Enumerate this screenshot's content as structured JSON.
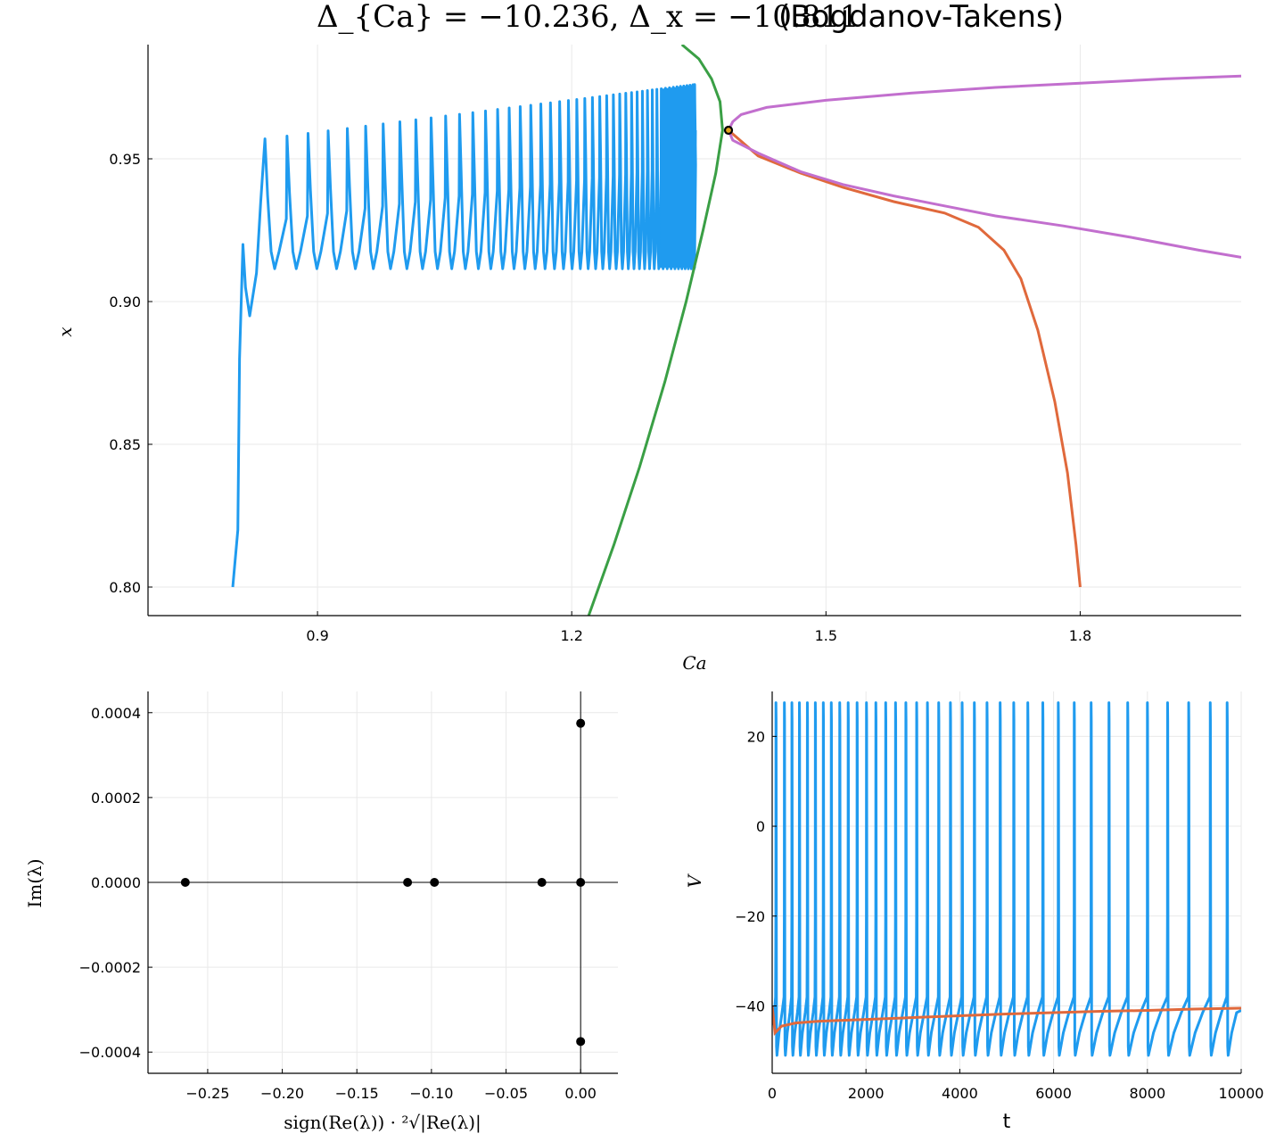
{
  "figure": {
    "title_math": "Δ_{Ca} = −10.236, Δ_x = −10.811",
    "title_plain": "(Bogdanov-Takens)"
  },
  "colors": {
    "trajectory": "#1f9bef",
    "green_branch": "#3a9f45",
    "orange_branch": "#e0693c",
    "purple_branch": "#c26fce",
    "point": "#000000",
    "bt_fill": "#e3a31e"
  },
  "chart_data": [
    {
      "type": "line",
      "panel": "phase-plane",
      "xlabel": "Ca",
      "ylabel": "x",
      "xlim": [
        0.7,
        1.99
      ],
      "ylim": [
        0.79,
        0.99
      ],
      "xticks": [
        0.9,
        1.2,
        1.5,
        1.8
      ],
      "xtick_labels": [
        "0.9",
        "1.2",
        "1.5",
        "1.8"
      ],
      "yticks": [
        0.8,
        0.85,
        0.9,
        0.95
      ],
      "ytick_labels": [
        "0.80",
        "0.85",
        "0.90",
        "0.95"
      ],
      "grid": true,
      "series": [
        {
          "key": "trajectory",
          "description_points": [
            [
              0.8,
              0.8
            ],
            [
              0.81,
              0.88
            ],
            [
              0.812,
              0.92
            ],
            [
              0.82,
              0.895
            ],
            [
              0.835,
              0.935
            ],
            [
              0.838,
              0.957
            ],
            [
              1.345,
              0.976
            ],
            [
              1.345,
              0.912
            ]
          ]
        },
        {
          "key": "green",
          "points": [
            [
              1.22,
              0.79
            ],
            [
              1.25,
              0.815
            ],
            [
              1.28,
              0.842
            ],
            [
              1.31,
              0.872
            ],
            [
              1.335,
              0.9
            ],
            [
              1.355,
              0.925
            ],
            [
              1.37,
              0.945
            ],
            [
              1.378,
              0.96
            ],
            [
              1.375,
              0.97
            ],
            [
              1.365,
              0.978
            ],
            [
              1.35,
              0.985
            ],
            [
              1.33,
              0.99
            ]
          ]
        },
        {
          "key": "orange",
          "points": [
            [
              1.385,
              0.96
            ],
            [
              1.42,
              0.951
            ],
            [
              1.47,
              0.945
            ],
            [
              1.52,
              0.94
            ],
            [
              1.58,
              0.935
            ],
            [
              1.64,
              0.931
            ],
            [
              1.68,
              0.926
            ],
            [
              1.71,
              0.918
            ],
            [
              1.73,
              0.908
            ],
            [
              1.75,
              0.89
            ],
            [
              1.77,
              0.865
            ],
            [
              1.785,
              0.84
            ],
            [
              1.795,
              0.815
            ],
            [
              1.8,
              0.8
            ]
          ]
        },
        {
          "key": "purple_upper",
          "points": [
            [
              1.385,
              0.96
            ],
            [
              1.39,
              0.963
            ],
            [
              1.4,
              0.9655
            ],
            [
              1.43,
              0.968
            ],
            [
              1.5,
              0.9705
            ],
            [
              1.6,
              0.973
            ],
            [
              1.7,
              0.975
            ],
            [
              1.8,
              0.9765
            ],
            [
              1.9,
              0.978
            ],
            [
              1.99,
              0.979
            ]
          ]
        },
        {
          "key": "purple_lower",
          "points": [
            [
              1.385,
              0.96
            ],
            [
              1.39,
              0.9565
            ],
            [
              1.42,
              0.952
            ],
            [
              1.47,
              0.9455
            ],
            [
              1.52,
              0.941
            ],
            [
              1.58,
              0.937
            ],
            [
              1.64,
              0.9335
            ],
            [
              1.7,
              0.93
            ],
            [
              1.78,
              0.9265
            ],
            [
              1.86,
              0.9225
            ],
            [
              1.94,
              0.918
            ],
            [
              1.99,
              0.9155
            ]
          ]
        }
      ],
      "marker": {
        "label": "Bogdanov-Takens",
        "x": 1.385,
        "y": 0.96
      }
    },
    {
      "type": "scatter",
      "panel": "eigenvalues",
      "xlabel": "sign(Re(λ)) · ²√|Re(λ)|",
      "ylabel": "Im(λ)",
      "xlim": [
        -0.29,
        0.025
      ],
      "ylim": [
        -0.00045,
        0.00045
      ],
      "xticks": [
        -0.25,
        -0.2,
        -0.15,
        -0.1,
        -0.05,
        0.0
      ],
      "xtick_labels": [
        "−0.25",
        "−0.20",
        "−0.15",
        "−0.10",
        "−0.05",
        "0.00"
      ],
      "yticks": [
        0.0004,
        0.0002,
        0.0,
        -0.0002,
        -0.0004
      ],
      "ytick_labels": [
        "0.0004",
        "0.0002",
        "0.0000",
        "−0.0002",
        "−0.0004"
      ],
      "grid": true,
      "points": [
        [
          -0.265,
          0.0
        ],
        [
          -0.116,
          0.0
        ],
        [
          -0.098,
          0.0
        ],
        [
          -0.026,
          0.0
        ],
        [
          0.0,
          0.0
        ],
        [
          0.0,
          0.000375
        ],
        [
          0.0,
          -0.000375
        ]
      ]
    },
    {
      "type": "line",
      "panel": "voltage-trace",
      "xlabel": "t",
      "ylabel": "V",
      "xlim": [
        0,
        10000
      ],
      "ylim": [
        -55,
        30
      ],
      "xticks": [
        0,
        2000,
        4000,
        6000,
        8000,
        10000
      ],
      "xtick_labels": [
        "0",
        "2000",
        "4000",
        "6000",
        "8000",
        "10000"
      ],
      "yticks": [
        20,
        0,
        -20,
        -40
      ],
      "ytick_labels": [
        "20",
        "0",
        "−20",
        "−40"
      ],
      "grid": true,
      "spike_peak": 27.5,
      "spike_trough": -51,
      "spike_times": [
        80,
        260,
        420,
        580,
        750,
        920,
        1090,
        1260,
        1440,
        1620,
        1810,
        2010,
        2210,
        2420,
        2630,
        2850,
        3080,
        3310,
        3550,
        3800,
        4050,
        4310,
        4580,
        4860,
        5150,
        5450,
        5770,
        6100,
        6440,
        6800,
        7180,
        7580,
        8000,
        8430,
        8880,
        9340,
        9700
      ],
      "orange_points": [
        [
          0,
          -40
        ],
        [
          60,
          -46
        ],
        [
          200,
          -44.5
        ],
        [
          500,
          -43.8
        ],
        [
          1000,
          -43.4
        ],
        [
          2000,
          -43.0
        ],
        [
          3000,
          -42.6
        ],
        [
          4000,
          -42.2
        ],
        [
          5000,
          -41.8
        ],
        [
          6000,
          -41.5
        ],
        [
          7000,
          -41.2
        ],
        [
          8000,
          -41.0
        ],
        [
          9000,
          -40.7
        ],
        [
          10000,
          -40.5
        ]
      ]
    }
  ]
}
